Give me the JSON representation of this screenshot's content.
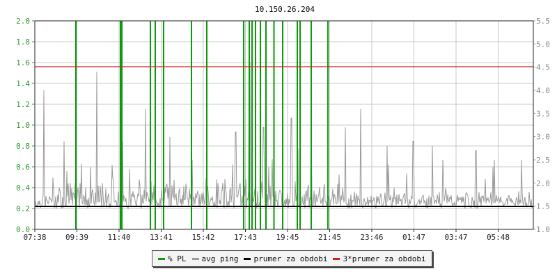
{
  "chart_data": {
    "type": "line",
    "title": "10.150.26.204",
    "x_ticks": [
      "07:38",
      "09:39",
      "11:40",
      "13:41",
      "15:42",
      "17:43",
      "19:45",
      "21:45",
      "23:46",
      "01:47",
      "03:47",
      "05:48"
    ],
    "y_left": {
      "ticks": [
        "0.0",
        "0.2",
        "0.4",
        "0.6",
        "0.8",
        "1.0",
        "1.2",
        "1.4",
        "1.6",
        "1.8",
        "2.0"
      ],
      "range": [
        0,
        2.0
      ]
    },
    "y_right": {
      "ticks": [
        "1.0",
        "1.5",
        "2.0",
        "2.5",
        "3.0",
        "3.5",
        "4.0",
        "4.5",
        "5.0",
        "5.5"
      ],
      "range": [
        1.0,
        5.5
      ]
    },
    "grid": true,
    "legend_position": "bottom-center",
    "series": [
      {
        "name": "% PL",
        "color": "#0a9a0a",
        "axis": "left",
        "style": "spikes",
        "points": [
          {
            "time": "09:36",
            "value": 2.0
          },
          {
            "time": "11:44",
            "value": 2.0
          },
          {
            "time": "11:48",
            "value": 2.0
          },
          {
            "time": "13:10",
            "value": 2.0
          },
          {
            "time": "13:24",
            "value": 2.0
          },
          {
            "time": "13:48",
            "value": 2.0
          },
          {
            "time": "15:08",
            "value": 2.0
          },
          {
            "time": "15:52",
            "value": 2.0
          },
          {
            "time": "17:38",
            "value": 2.0
          },
          {
            "time": "17:54",
            "value": 2.0
          },
          {
            "time": "18:02",
            "value": 2.0
          },
          {
            "time": "18:12",
            "value": 2.0
          },
          {
            "time": "18:26",
            "value": 2.0
          },
          {
            "time": "18:42",
            "value": 2.0
          },
          {
            "time": "19:05",
            "value": 2.0
          },
          {
            "time": "19:30",
            "value": 2.0
          },
          {
            "time": "20:12",
            "value": 2.0
          },
          {
            "time": "20:20",
            "value": 2.0
          },
          {
            "time": "20:52",
            "value": 2.0
          },
          {
            "time": "21:40",
            "value": 2.0
          }
        ]
      },
      {
        "name": "avg ping",
        "color": "#9a9a9a",
        "axis": "right",
        "style": "noisy-line",
        "baseline": 1.5,
        "typical_band": [
          1.35,
          2.2
        ],
        "peaks": [
          {
            "time": "08:04",
            "value": 4.0
          },
          {
            "time": "09:02",
            "value": 2.9
          },
          {
            "time": "10:36",
            "value": 4.4
          },
          {
            "time": "11:50",
            "value": 2.9
          },
          {
            "time": "12:56",
            "value": 3.6
          },
          {
            "time": "14:06",
            "value": 3.0
          },
          {
            "time": "15:10",
            "value": 2.5
          },
          {
            "time": "17:15",
            "value": 3.1
          },
          {
            "time": "17:55",
            "value": 4.6
          },
          {
            "time": "18:35",
            "value": 3.2
          },
          {
            "time": "19:55",
            "value": 3.4
          },
          {
            "time": "20:52",
            "value": 3.6
          },
          {
            "time": "22:30",
            "value": 3.2
          },
          {
            "time": "23:14",
            "value": 3.6
          },
          {
            "time": "00:30",
            "value": 2.8
          },
          {
            "time": "01:45",
            "value": 2.9
          },
          {
            "time": "02:40",
            "value": 2.8
          },
          {
            "time": "03:10",
            "value": 2.5
          },
          {
            "time": "04:45",
            "value": 2.7
          },
          {
            "time": "05:38",
            "value": 2.5
          },
          {
            "time": "06:56",
            "value": 2.5
          }
        ]
      },
      {
        "name": "prumer za obdobi",
        "color": "#000000",
        "axis": "left",
        "style": "hline",
        "value": 0.22
      },
      {
        "name": "3*prumer za obdobi",
        "color": "#cc2222",
        "axis": "left",
        "style": "hline",
        "value": 1.56
      }
    ]
  }
}
